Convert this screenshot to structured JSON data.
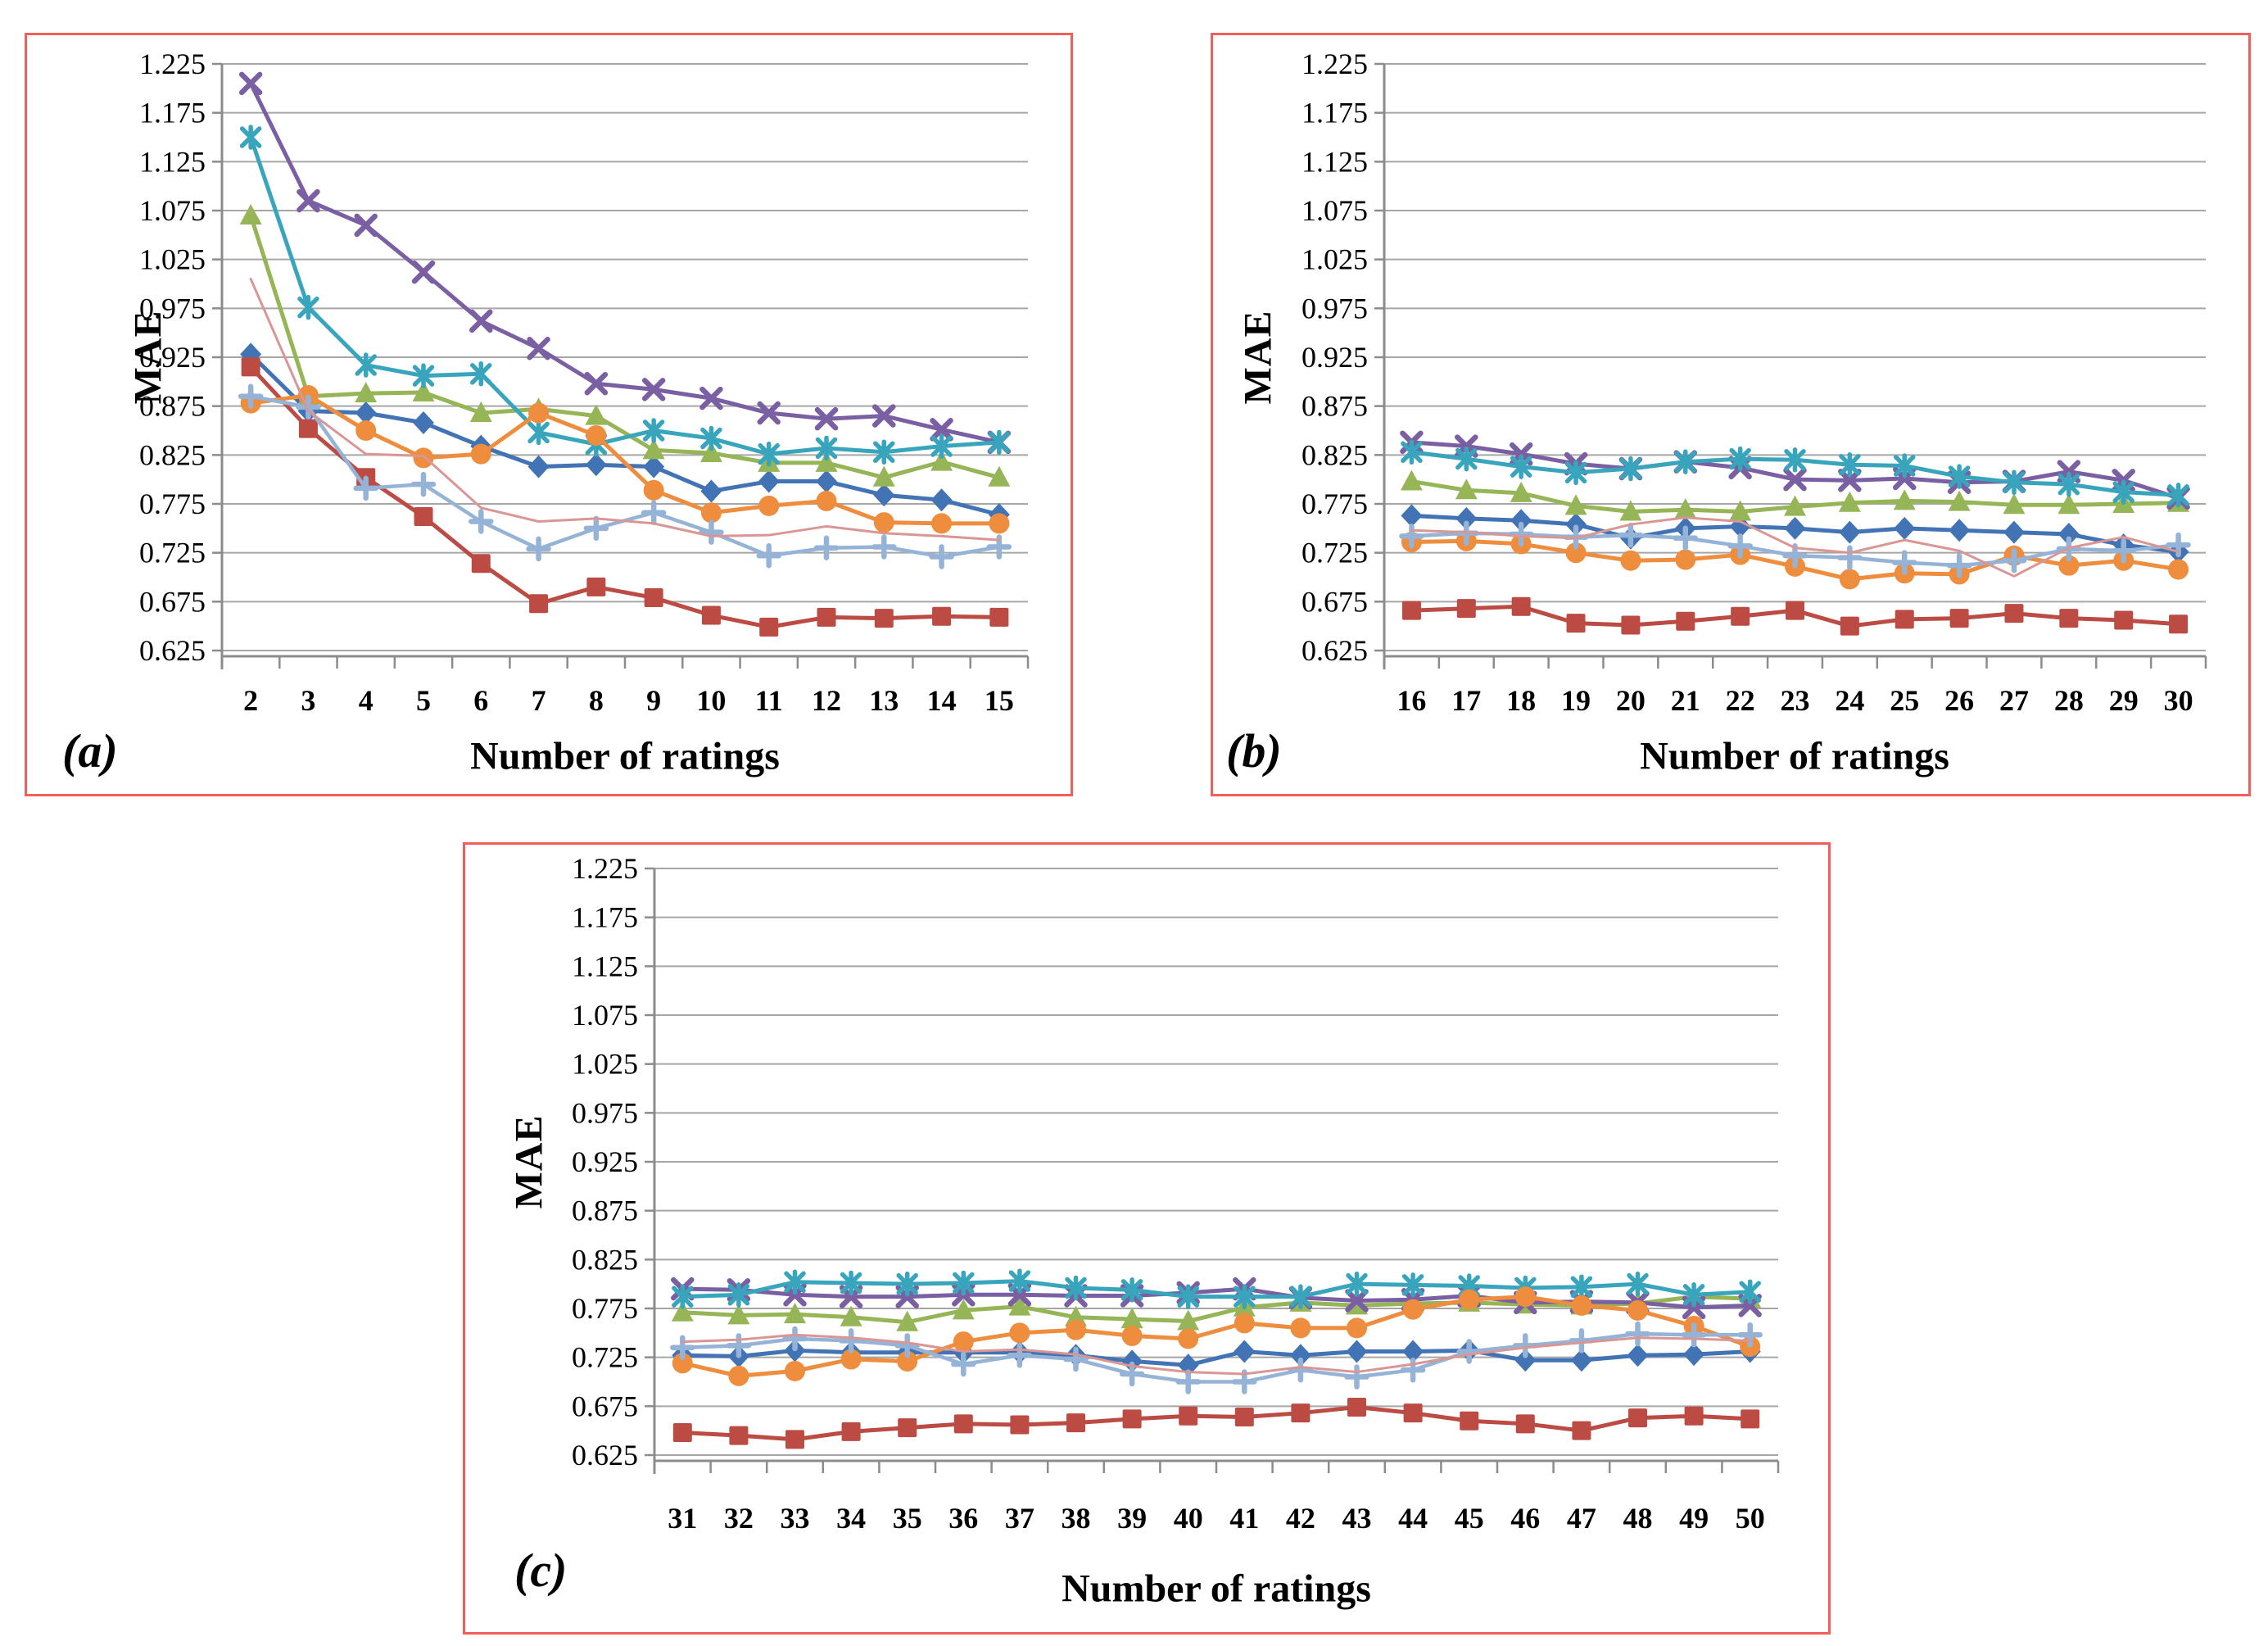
{
  "figure": {
    "panels": [
      {
        "id": "a",
        "letter": "(a)",
        "x_title": "Number of ratings",
        "y_title": "MAE"
      },
      {
        "id": "b",
        "letter": "(b)",
        "x_title": "Number of ratings",
        "y_title": "MAE"
      },
      {
        "id": "c",
        "letter": "(c)",
        "x_title": "Number of ratings",
        "y_title": "MAE"
      }
    ]
  },
  "styles": {
    "panel_border": "#f15e5c",
    "grid_color": "#a6a6a6",
    "axis_color": "#8c8c8c",
    "text_color": "#000000"
  },
  "chart_data": [
    {
      "type": "line",
      "panel": "a",
      "title": "",
      "xlabel": "Number of ratings",
      "ylabel": "MAE",
      "ylim": [
        0.625,
        1.225
      ],
      "ytick_step": 0.05,
      "grid": true,
      "legend": "none",
      "categories": [
        2,
        3,
        4,
        5,
        6,
        7,
        8,
        9,
        10,
        11,
        12,
        13,
        14,
        15
      ],
      "series": [
        {
          "name": "blue-diamond",
          "marker": "diamond",
          "color": "#4273b4",
          "width": 5,
          "values": [
            0.928,
            0.87,
            0.868,
            0.858,
            0.834,
            0.813,
            0.815,
            0.813,
            0.788,
            0.798,
            0.798,
            0.784,
            0.779,
            0.764
          ]
        },
        {
          "name": "red-square",
          "marker": "square",
          "color": "#bc4b43",
          "width": 5,
          "values": [
            0.915,
            0.852,
            0.802,
            0.762,
            0.714,
            0.673,
            0.69,
            0.679,
            0.661,
            0.649,
            0.659,
            0.658,
            0.66,
            0.659
          ]
        },
        {
          "name": "green-triangle",
          "marker": "triangle",
          "color": "#96b556",
          "width": 5,
          "values": [
            1.07,
            0.885,
            0.888,
            0.889,
            0.868,
            0.872,
            0.865,
            0.83,
            0.827,
            0.817,
            0.817,
            0.802,
            0.818,
            0.802
          ]
        },
        {
          "name": "purple-x",
          "marker": "x",
          "color": "#7a5fa3",
          "width": 5,
          "values": [
            1.205,
            1.085,
            1.06,
            1.012,
            0.962,
            0.934,
            0.898,
            0.892,
            0.883,
            0.868,
            0.862,
            0.865,
            0.851,
            0.838
          ]
        },
        {
          "name": "teal-star",
          "marker": "star",
          "color": "#38a5bd",
          "width": 5,
          "values": [
            1.15,
            0.976,
            0.917,
            0.906,
            0.908,
            0.848,
            0.836,
            0.85,
            0.842,
            0.826,
            0.832,
            0.828,
            0.834,
            0.838
          ]
        },
        {
          "name": "orange-circle",
          "marker": "circle",
          "color": "#ee8d3e",
          "width": 5,
          "values": [
            0.878,
            0.886,
            0.85,
            0.822,
            0.826,
            0.868,
            0.845,
            0.789,
            0.766,
            0.773,
            0.778,
            0.756,
            0.755,
            0.755
          ]
        },
        {
          "name": "lightblue-plus",
          "marker": "plus",
          "color": "#95b3d7",
          "width": 4.5,
          "values": [
            0.885,
            0.874,
            0.791,
            0.795,
            0.757,
            0.729,
            0.75,
            0.766,
            0.746,
            0.722,
            0.73,
            0.731,
            0.721,
            0.731
          ]
        },
        {
          "name": "pink-line",
          "marker": "none",
          "color": "#d99694",
          "width": 3,
          "values": [
            1.005,
            0.87,
            0.826,
            0.824,
            0.771,
            0.757,
            0.76,
            0.755,
            0.742,
            0.743,
            0.752,
            0.745,
            0.742,
            0.738
          ]
        }
      ]
    },
    {
      "type": "line",
      "panel": "b",
      "title": "",
      "xlabel": "Number of ratings",
      "ylabel": "MAE",
      "ylim": [
        0.625,
        1.225
      ],
      "ytick_step": 0.05,
      "grid": true,
      "legend": "none",
      "categories": [
        16,
        17,
        18,
        19,
        20,
        21,
        22,
        23,
        24,
        25,
        26,
        27,
        28,
        29,
        30
      ],
      "series": [
        {
          "name": "blue-diamond",
          "marker": "diamond",
          "color": "#4273b4",
          "width": 5,
          "values": [
            0.763,
            0.76,
            0.758,
            0.754,
            0.74,
            0.75,
            0.752,
            0.75,
            0.746,
            0.75,
            0.748,
            0.746,
            0.744,
            0.733,
            0.726
          ]
        },
        {
          "name": "red-square",
          "marker": "square",
          "color": "#bc4b43",
          "width": 5,
          "values": [
            0.666,
            0.668,
            0.67,
            0.653,
            0.651,
            0.655,
            0.66,
            0.666,
            0.65,
            0.657,
            0.658,
            0.663,
            0.658,
            0.656,
            0.652
          ]
        },
        {
          "name": "green-triangle",
          "marker": "triangle",
          "color": "#96b556",
          "width": 5,
          "values": [
            0.798,
            0.789,
            0.786,
            0.773,
            0.767,
            0.769,
            0.767,
            0.772,
            0.776,
            0.778,
            0.777,
            0.774,
            0.774,
            0.775,
            0.776
          ]
        },
        {
          "name": "purple-x",
          "marker": "x",
          "color": "#7a5fa3",
          "width": 5,
          "values": [
            0.838,
            0.834,
            0.826,
            0.816,
            0.811,
            0.818,
            0.812,
            0.8,
            0.799,
            0.801,
            0.797,
            0.798,
            0.808,
            0.799,
            0.781
          ]
        },
        {
          "name": "teal-star",
          "marker": "star",
          "color": "#38a5bd",
          "width": 5,
          "values": [
            0.828,
            0.821,
            0.813,
            0.807,
            0.811,
            0.818,
            0.821,
            0.82,
            0.815,
            0.814,
            0.803,
            0.797,
            0.795,
            0.787,
            0.784
          ]
        },
        {
          "name": "orange-circle",
          "marker": "circle",
          "color": "#ee8d3e",
          "width": 5,
          "values": [
            0.736,
            0.737,
            0.734,
            0.725,
            0.717,
            0.718,
            0.723,
            0.711,
            0.698,
            0.704,
            0.703,
            0.722,
            0.712,
            0.717,
            0.708
          ]
        },
        {
          "name": "lightblue-plus",
          "marker": "plus",
          "color": "#95b3d7",
          "width": 4.5,
          "values": [
            0.742,
            0.745,
            0.744,
            0.741,
            0.743,
            0.74,
            0.732,
            0.722,
            0.72,
            0.715,
            0.712,
            0.717,
            0.729,
            0.727,
            0.733
          ]
        },
        {
          "name": "pink-line",
          "marker": "none",
          "color": "#d99694",
          "width": 3,
          "values": [
            0.748,
            0.746,
            0.742,
            0.74,
            0.754,
            0.761,
            0.757,
            0.73,
            0.725,
            0.738,
            0.727,
            0.701,
            0.73,
            0.741,
            0.726
          ]
        }
      ]
    },
    {
      "type": "line",
      "panel": "c",
      "title": "",
      "xlabel": "Number of ratings",
      "ylabel": "MAE",
      "ylim": [
        0.625,
        1.225
      ],
      "ytick_step": 0.05,
      "grid": true,
      "legend": "none",
      "categories": [
        31,
        32,
        33,
        34,
        35,
        36,
        37,
        38,
        39,
        40,
        41,
        42,
        43,
        44,
        45,
        46,
        47,
        48,
        49,
        50
      ],
      "series": [
        {
          "name": "blue-diamond",
          "marker": "diamond",
          "color": "#4273b4",
          "width": 5,
          "values": [
            0.727,
            0.726,
            0.732,
            0.73,
            0.73,
            0.73,
            0.73,
            0.727,
            0.721,
            0.717,
            0.731,
            0.727,
            0.731,
            0.731,
            0.732,
            0.722,
            0.722,
            0.727,
            0.728,
            0.731
          ]
        },
        {
          "name": "red-square",
          "marker": "square",
          "color": "#bc4b43",
          "width": 5,
          "values": [
            0.648,
            0.645,
            0.641,
            0.649,
            0.653,
            0.657,
            0.656,
            0.658,
            0.662,
            0.665,
            0.664,
            0.668,
            0.674,
            0.668,
            0.66,
            0.657,
            0.65,
            0.663,
            0.665,
            0.662
          ]
        },
        {
          "name": "green-triangle",
          "marker": "triangle",
          "color": "#96b556",
          "width": 5,
          "values": [
            0.771,
            0.768,
            0.769,
            0.766,
            0.761,
            0.773,
            0.777,
            0.766,
            0.764,
            0.762,
            0.776,
            0.781,
            0.778,
            0.78,
            0.781,
            0.779,
            0.778,
            0.78,
            0.787,
            0.785
          ]
        },
        {
          "name": "purple-x",
          "marker": "x",
          "color": "#7a5fa3",
          "width": 5,
          "values": [
            0.795,
            0.794,
            0.789,
            0.787,
            0.787,
            0.789,
            0.789,
            0.788,
            0.788,
            0.791,
            0.795,
            0.786,
            0.783,
            0.784,
            0.788,
            0.781,
            0.782,
            0.781,
            0.776,
            0.778
          ]
        },
        {
          "name": "teal-star",
          "marker": "star",
          "color": "#38a5bd",
          "width": 5,
          "values": [
            0.787,
            0.789,
            0.802,
            0.801,
            0.8,
            0.801,
            0.803,
            0.796,
            0.794,
            0.787,
            0.787,
            0.787,
            0.8,
            0.799,
            0.798,
            0.796,
            0.797,
            0.8,
            0.789,
            0.792
          ]
        },
        {
          "name": "orange-circle",
          "marker": "circle",
          "color": "#ee8d3e",
          "width": 5,
          "values": [
            0.719,
            0.706,
            0.711,
            0.723,
            0.721,
            0.741,
            0.75,
            0.753,
            0.747,
            0.744,
            0.76,
            0.755,
            0.755,
            0.774,
            0.784,
            0.787,
            0.778,
            0.773,
            0.757,
            0.736
          ]
        },
        {
          "name": "lightblue-plus",
          "marker": "plus",
          "color": "#95b3d7",
          "width": 4.5,
          "values": [
            0.735,
            0.737,
            0.744,
            0.742,
            0.737,
            0.718,
            0.727,
            0.723,
            0.708,
            0.7,
            0.7,
            0.712,
            0.705,
            0.712,
            0.731,
            0.737,
            0.742,
            0.749,
            0.748,
            0.748
          ]
        },
        {
          "name": "pink-line",
          "marker": "none",
          "color": "#d99694",
          "width": 3,
          "values": [
            0.741,
            0.743,
            0.748,
            0.745,
            0.74,
            0.731,
            0.733,
            0.728,
            0.716,
            0.71,
            0.708,
            0.715,
            0.71,
            0.718,
            0.728,
            0.735,
            0.74,
            0.745,
            0.744,
            0.742
          ]
        }
      ]
    }
  ]
}
